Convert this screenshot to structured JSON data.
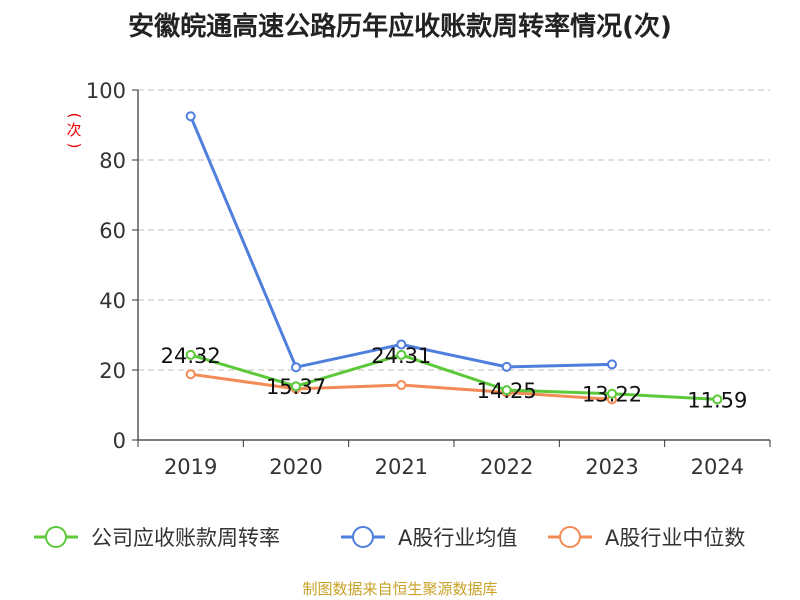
{
  "chart_data": {
    "type": "line",
    "title": "安徽皖通高速公路历年应收账款周转率情况(次)",
    "ylabel": "(次)",
    "xlabel": "",
    "categories": [
      "2019",
      "2020",
      "2021",
      "2022",
      "2023",
      "2024"
    ],
    "ylim": [
      0,
      100
    ],
    "yticks": [
      0,
      20,
      40,
      60,
      80,
      100
    ],
    "series": [
      {
        "name": "公司应收账款周转率",
        "color": "#5cc93a",
        "values": [
          24.32,
          15.37,
          24.31,
          14.25,
          13.22,
          11.59
        ],
        "labels": [
          "24.32",
          "15.37",
          "24.31",
          "14.25",
          "13.22",
          "11.59"
        ]
      },
      {
        "name": "A股行业均值",
        "color": "#4f7fdc",
        "values": [
          92.5,
          20.8,
          27.3,
          20.9,
          21.6,
          null
        ]
      },
      {
        "name": "A股行业中位数",
        "color": "#f28b55",
        "values": [
          18.8,
          14.6,
          15.7,
          13.6,
          11.6,
          null
        ]
      }
    ]
  },
  "source": "制图数据来自恒生聚源数据库"
}
